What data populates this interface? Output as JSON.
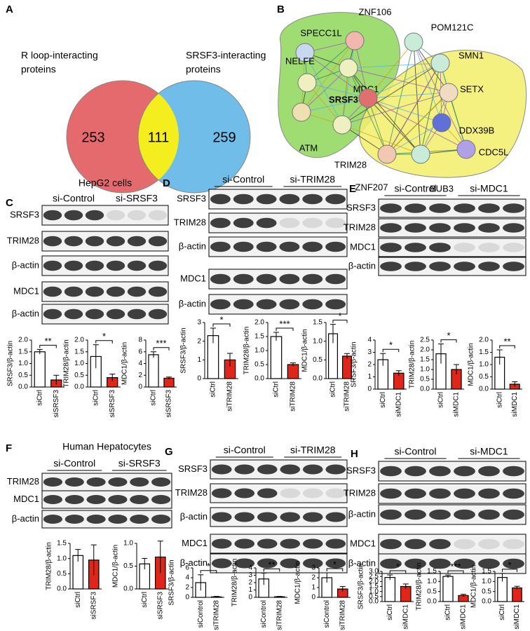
{
  "panel_labels": [
    "A",
    "B",
    "C",
    "D",
    "E",
    "F",
    "G",
    "H"
  ],
  "venn": {
    "left_label": [
      "R loop-interacting",
      "proteins"
    ],
    "right_label": [
      "SRSF3-interacting",
      "proteins"
    ],
    "left_only": 253,
    "both": 111,
    "right_only": 259
  },
  "network": {
    "nodes": [
      "SPECC1L",
      "ZNF106",
      "POM121C",
      "NELFE",
      "MDC1",
      "SMN1",
      "SETX",
      "SRSF3",
      "DDX39B",
      "ATM",
      "TRIM28",
      "CDC5L",
      "ZNF207",
      "BUB3"
    ]
  },
  "blots": [
    {
      "cell_type": "HepG2 cells",
      "groups": [
        "si-Control",
        "si-SRSF3"
      ],
      "rows": [
        "SRSF3",
        "TRIM28",
        "β-actin",
        "MDC1",
        "β-actin"
      ]
    },
    {
      "groups": [
        "si-Control",
        "si-TRIM28"
      ],
      "rows": [
        "SRSF3",
        "TRIM28",
        "β-actin",
        "MDC1",
        "β-actin"
      ]
    },
    {
      "groups": [
        "si-Control",
        "si-MDC1"
      ],
      "rows": [
        "SRSF3",
        "TRIM28",
        "MDC1",
        "β-actin"
      ]
    },
    {
      "cell_type": "Human Hepatocytes",
      "groups": [
        "si-Control",
        "si-SRSF3"
      ],
      "rows": [
        "TRIM28",
        "MDC1",
        "β-actin"
      ]
    },
    {
      "groups": [
        "si-Control",
        "si-TRIM28"
      ],
      "rows": [
        "SRSF3",
        "TRIM28",
        "β-actin",
        "MDC1",
        "β-actin"
      ]
    },
    {
      "groups": [
        "si-Control",
        "si-MDC1"
      ],
      "rows": [
        "SRSF3",
        "TRIM28",
        "β-actin",
        "MDC1",
        "β-actin"
      ]
    }
  ],
  "chart_data": [
    {
      "type": "bar",
      "ylabel": "SRSF3/β-actin",
      "categories": [
        "siCtrl",
        "siSRSF3"
      ],
      "values": [
        1.5,
        0.3
      ],
      "errors": [
        0.1,
        0.2
      ],
      "colors": [
        "#ffffff",
        "#e0261b"
      ],
      "ylim": [
        0,
        2
      ],
      "yticks": [
        {
          "value": 0,
          "label": "0.0"
        },
        0.5,
        {
          "value": 1,
          "label": "1.0"
        },
        1.5,
        {
          "value": 2,
          "label": "2.0"
        }
      ],
      "significance": "**"
    },
    {
      "type": "bar",
      "ylabel": "TRIM28/β-actin",
      "categories": [
        "siCtrl",
        "siSRSF3"
      ],
      "values": [
        1.3,
        0.4
      ],
      "errors": [
        0.5,
        0.15
      ],
      "colors": [
        "#ffffff",
        "#e0261b"
      ],
      "ylim": [
        0,
        2
      ],
      "yticks": [
        {
          "value": 0,
          "label": "0.0"
        },
        0.5,
        {
          "value": 1,
          "label": "1.0"
        },
        1.5,
        {
          "value": 2,
          "label": "2.0"
        }
      ],
      "significance": "*"
    },
    {
      "type": "bar",
      "ylabel": "MDC1/β-actin",
      "categories": [
        "siCtrl",
        "siSRSF3"
      ],
      "values": [
        5.5,
        1.5
      ],
      "errors": [
        0.5,
        0.2
      ],
      "colors": [
        "#ffffff",
        "#e0261b"
      ],
      "ylim": [
        0,
        8
      ],
      "yticks": [
        0,
        2,
        4,
        6,
        8
      ],
      "significance": "***"
    },
    {
      "type": "bar",
      "ylabel": "SRSF3/β-actin",
      "categories": [
        "siCtrl",
        "siTRIM28"
      ],
      "values": [
        2.3,
        1.0
      ],
      "errors": [
        0.4,
        0.35
      ],
      "colors": [
        "#ffffff",
        "#e0261b"
      ],
      "ylim": [
        0,
        3
      ],
      "yticks": [
        0,
        1,
        2,
        3
      ],
      "significance": "*"
    },
    {
      "type": "bar",
      "ylabel": "TRIM28/β-actin",
      "categories": [
        "siCtrl",
        "siTRIM28"
      ],
      "values": [
        1.5,
        0.5
      ],
      "errors": [
        0.15,
        0.06
      ],
      "colors": [
        "#ffffff",
        "#e0261b"
      ],
      "ylim": [
        0,
        2
      ],
      "yticks": [
        {
          "value": 0,
          "label": "0.0"
        },
        0.5,
        {
          "value": 1,
          "label": "1.0"
        },
        1.5,
        {
          "value": 2,
          "label": "2.0"
        }
      ],
      "significance": "***"
    },
    {
      "type": "bar",
      "ylabel": "MDC1/β-actin",
      "categories": [
        "siCtrl",
        "siTRIM28"
      ],
      "values": [
        1.2,
        0.6
      ],
      "errors": [
        0.25,
        0.07
      ],
      "colors": [
        "#ffffff",
        "#e0261b"
      ],
      "ylim": [
        0,
        1.5
      ],
      "yticks": [
        {
          "value": 0,
          "label": "0.0"
        },
        0.5,
        {
          "value": 1,
          "label": "1.0"
        },
        1.5
      ],
      "significance": "*"
    },
    {
      "type": "bar",
      "ylabel": "SRSF3/β-actin",
      "categories": [
        "siCtrl",
        "siMDC1"
      ],
      "values": [
        2.4,
        1.3
      ],
      "errors": [
        0.5,
        0.2
      ],
      "colors": [
        "#ffffff",
        "#e0261b"
      ],
      "ylim": [
        0,
        4
      ],
      "yticks": [
        0,
        1,
        2,
        3,
        4
      ],
      "significance": "*"
    },
    {
      "type": "bar",
      "ylabel": "TRIM28/β-actin",
      "categories": [
        "siCtrl",
        "siMDC1"
      ],
      "values": [
        1.8,
        1.0
      ],
      "errors": [
        0.5,
        0.25
      ],
      "colors": [
        "#ffffff",
        "#e0261b"
      ],
      "ylim": [
        0,
        2.5
      ],
      "yticks": [
        {
          "value": 0,
          "label": "0.0"
        },
        0.5,
        {
          "value": 1,
          "label": "1.0"
        },
        1.5,
        {
          "value": 2,
          "label": "2.0"
        },
        2.5
      ],
      "significance": "*"
    },
    {
      "type": "bar",
      "ylabel": "MDC1/β-actin",
      "categories": [
        "siCtrl",
        "siMDC1"
      ],
      "values": [
        1.3,
        0.2
      ],
      "errors": [
        0.3,
        0.1
      ],
      "colors": [
        "#ffffff",
        "#e0261b"
      ],
      "ylim": [
        0,
        2
      ],
      "yticks": [
        {
          "value": 0,
          "label": "0.0"
        },
        0.5,
        {
          "value": 1,
          "label": "1.0"
        },
        1.5,
        {
          "value": 2,
          "label": "2.0"
        }
      ],
      "significance": "**"
    },
    {
      "type": "bar",
      "ylabel": "TRIM28/β-actin",
      "categories": [
        "siCtrl",
        "siSRSF3"
      ],
      "values": [
        1.1,
        0.95
      ],
      "errors": [
        0.2,
        0.5
      ],
      "colors": [
        "#ffffff",
        "#e0261b"
      ],
      "ylim": [
        0,
        1.5
      ],
      "yticks": [
        {
          "value": 0,
          "label": "0.0"
        },
        0.5,
        {
          "value": 1,
          "label": "1.0"
        },
        1.5
      ]
    },
    {
      "type": "bar",
      "ylabel": "MDC1/β-actin",
      "categories": [
        "siCtrl",
        "siSRSF3"
      ],
      "values": [
        0.55,
        0.7
      ],
      "errors": [
        0.12,
        0.35
      ],
      "colors": [
        "#ffffff",
        "#e0261b"
      ],
      "ylim": [
        0,
        1
      ],
      "yticks": [
        {
          "value": 0,
          "label": "0.0"
        },
        0.5,
        {
          "value": 1,
          "label": "1.0"
        }
      ]
    },
    {
      "type": "bar",
      "ylabel": "SRSF3/β-actin",
      "categories": [
        "siControl",
        "siTRIM28"
      ],
      "values": [
        3.0,
        0.1
      ],
      "errors": [
        1.6,
        0.1
      ],
      "colors": [
        "#ffffff",
        "#e0261b"
      ],
      "ylim": [
        0,
        6
      ],
      "yticks": [
        0,
        2,
        4,
        6
      ],
      "significance": "*"
    },
    {
      "type": "bar",
      "ylabel": "TRIM28/β-actin",
      "categories": [
        "siControl",
        "siTRIM28"
      ],
      "values": [
        2.5,
        0.08
      ],
      "errors": [
        0.8,
        0.05
      ],
      "colors": [
        "#ffffff",
        "#e0261b"
      ],
      "ylim": [
        0,
        4
      ],
      "yticks": [
        0,
        1,
        2,
        3,
        4
      ],
      "significance": "**"
    },
    {
      "type": "bar",
      "ylabel": "MDC1/β-actin",
      "categories": [
        "siControl",
        "siTRIM28"
      ],
      "values": [
        2.0,
        0.85
      ],
      "errors": [
        0.5,
        0.25
      ],
      "colors": [
        "#ffffff",
        "#e0261b"
      ],
      "ylim": [
        0,
        3
      ],
      "yticks": [
        0,
        1,
        2,
        3
      ],
      "significance": "*"
    },
    {
      "type": "bar",
      "ylabel": "SRSF3/β-actin",
      "categories": [
        "siCtrl",
        "siMDC1"
      ],
      "values": [
        2.4,
        1.5
      ],
      "errors": [
        0.25,
        0.25
      ],
      "colors": [
        "#ffffff",
        "#e0261b"
      ],
      "ylim": [
        0,
        3
      ],
      "yticks": [
        {
          "value": 0,
          "label": "0.0"
        },
        0.5,
        {
          "value": 1,
          "label": "1.0"
        },
        1.5,
        {
          "value": 2,
          "label": "2.0"
        },
        2.5,
        {
          "value": 3,
          "label": "3.0"
        }
      ],
      "significance": "*"
    },
    {
      "type": "bar",
      "ylabel": "TRIM28/β-actin",
      "categories": [
        "siCtrl",
        "siMDC1"
      ],
      "values": [
        1.25,
        0.3
      ],
      "errors": [
        0.07,
        0.06
      ],
      "colors": [
        "#ffffff",
        "#e0261b"
      ],
      "ylim": [
        0,
        1.5
      ],
      "yticks": [
        {
          "value": 0,
          "label": "0.0"
        },
        0.5,
        {
          "value": 1,
          "label": "1.0"
        },
        1.5
      ],
      "significance": "***"
    },
    {
      "type": "bar",
      "ylabel": "MDC1/β-actin",
      "categories": [
        "siCtrl",
        "siMDC1"
      ],
      "values": [
        1.2,
        0.68
      ],
      "errors": [
        0.2,
        0.08
      ],
      "colors": [
        "#ffffff",
        "#e0261b"
      ],
      "ylim": [
        0,
        1.5
      ],
      "yticks": [
        {
          "value": 0,
          "label": "0.0"
        },
        0.5,
        {
          "value": 1,
          "label": "1.0"
        },
        1.5
      ],
      "significance": "*"
    }
  ]
}
